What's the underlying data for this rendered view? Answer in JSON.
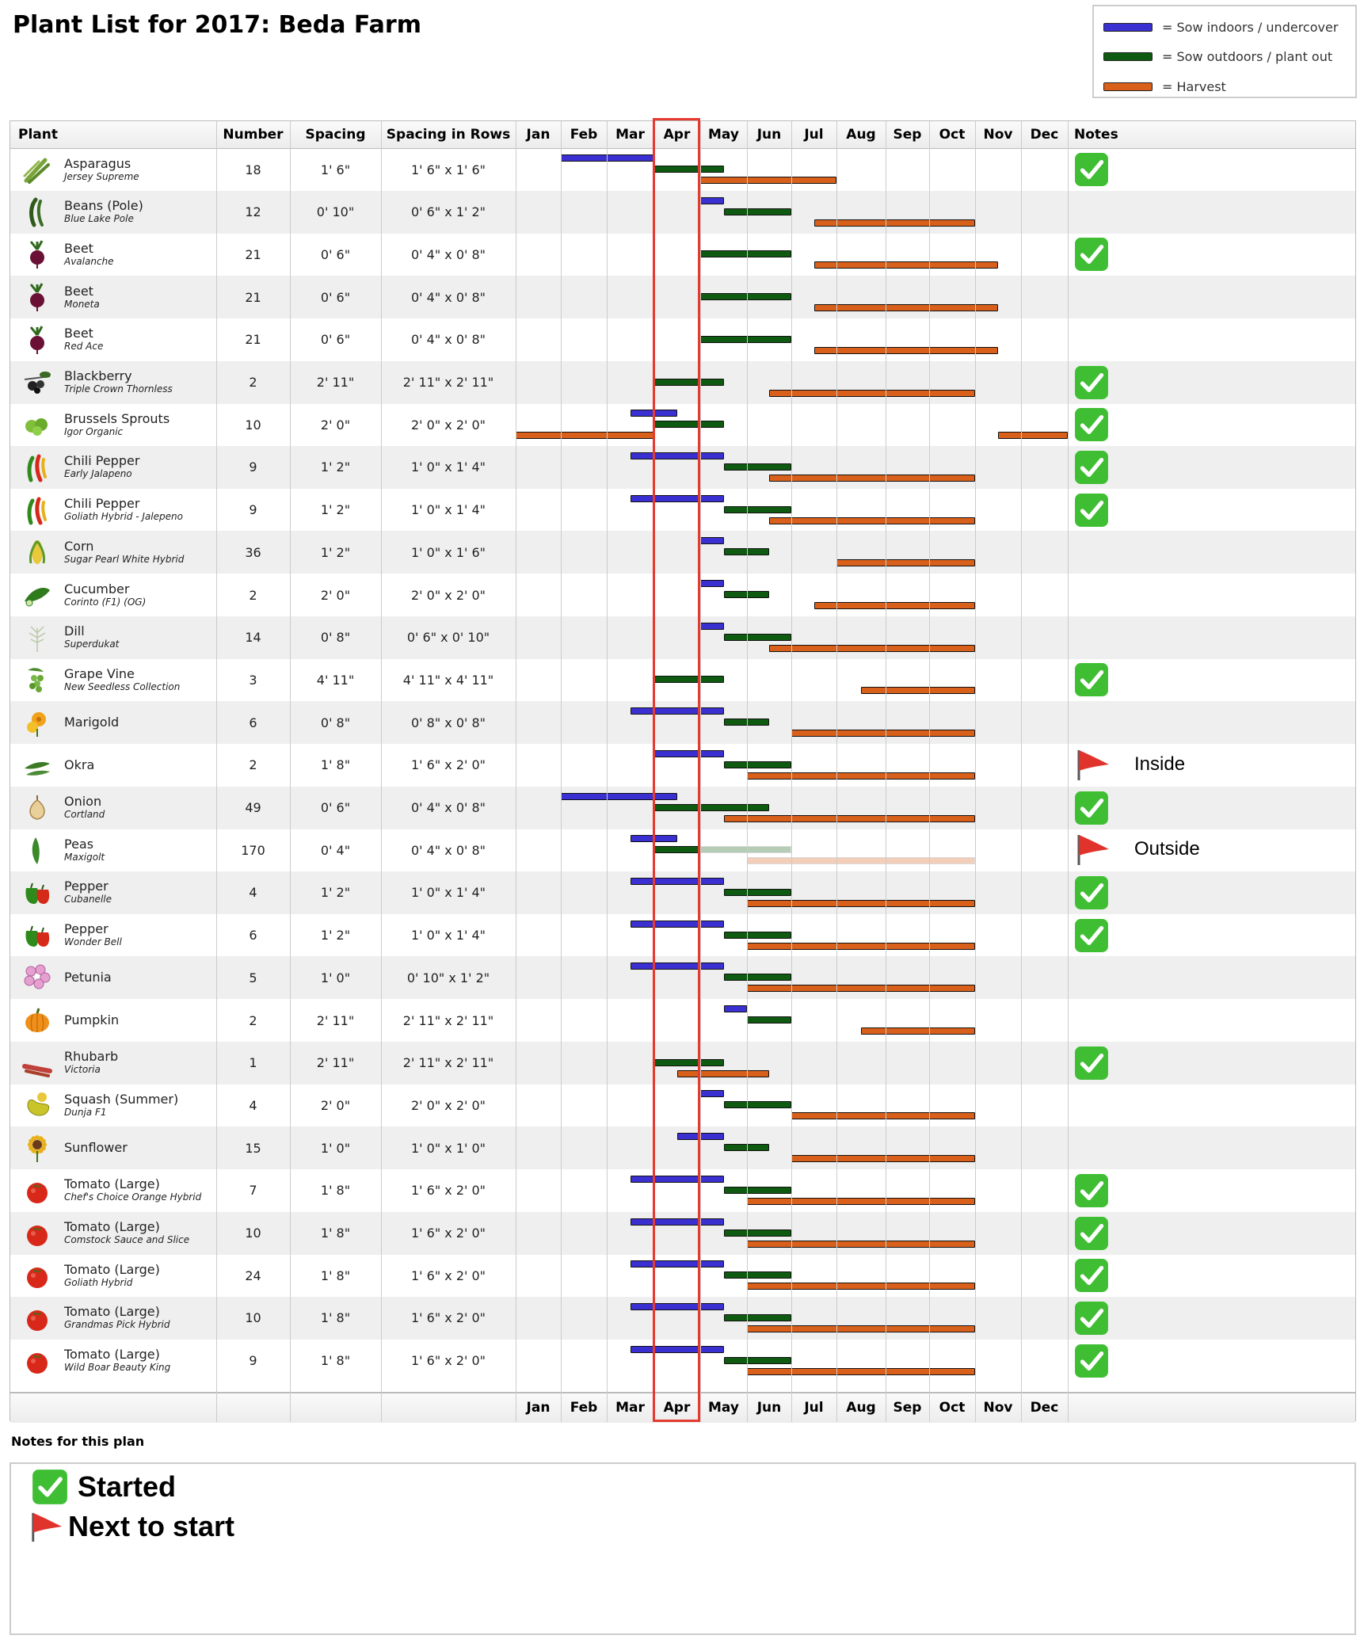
{
  "title": "Plant List for 2017: Beda Farm",
  "legend": [
    {
      "label": "= Sow indoors / undercover",
      "kind": "sow-in"
    },
    {
      "label": "= Sow outdoors / plant out",
      "kind": "sow-out"
    },
    {
      "label": "= Harvest",
      "kind": "harvest"
    }
  ],
  "colors": {
    "sow_in": "#3a2fd0",
    "sow_out": "#0e5a10",
    "harvest": "#d9601b",
    "highlight": "#e53a30",
    "check": "#3fbe33",
    "flag": "#e0332c"
  },
  "columns": {
    "plant": "Plant",
    "number": "Number",
    "spacing": "Spacing",
    "rows": "Spacing in Rows",
    "notes": "Notes"
  },
  "months": [
    "Jan",
    "Feb",
    "Mar",
    "Apr",
    "May",
    "Jun",
    "Jul",
    "Aug",
    "Sep",
    "Oct",
    "Nov",
    "Dec"
  ],
  "highlight_month": "Apr",
  "plants": [
    {
      "name": "Asparagus",
      "variety": "Jersey Supreme",
      "number": "18",
      "spacing": "1' 6\"",
      "rows": "1' 6\" x 1' 6\"",
      "icon": "asparagus-icon",
      "bars": [
        {
          "kind": "sow-in",
          "start": 1,
          "end": 3
        },
        {
          "kind": "sow-out",
          "start": 3,
          "end": 4.5
        },
        {
          "kind": "harvest",
          "start": 4,
          "end": 7
        }
      ],
      "note": "check"
    },
    {
      "name": "Beans (Pole)",
      "variety": "Blue Lake Pole",
      "number": "12",
      "spacing": "0' 10\"",
      "rows": "0' 6\" x 1' 2\"",
      "icon": "bean-icon",
      "bars": [
        {
          "kind": "sow-in",
          "start": 4,
          "end": 4.5
        },
        {
          "kind": "sow-out",
          "start": 4.5,
          "end": 6
        },
        {
          "kind": "harvest",
          "start": 6.5,
          "end": 10
        }
      ],
      "note": ""
    },
    {
      "name": "Beet",
      "variety": "Avalanche",
      "number": "21",
      "spacing": "0' 6\"",
      "rows": "0' 4\" x 0' 8\"",
      "icon": "beet-icon",
      "bars": [
        {
          "kind": "sow-out",
          "start": 4,
          "end": 6
        },
        {
          "kind": "harvest",
          "start": 6.5,
          "end": 10.5
        }
      ],
      "note": "check"
    },
    {
      "name": "Beet",
      "variety": "Moneta",
      "number": "21",
      "spacing": "0' 6\"",
      "rows": "0' 4\" x 0' 8\"",
      "icon": "beet-icon",
      "bars": [
        {
          "kind": "sow-out",
          "start": 4,
          "end": 6
        },
        {
          "kind": "harvest",
          "start": 6.5,
          "end": 10.5
        }
      ],
      "note": ""
    },
    {
      "name": "Beet",
      "variety": "Red Ace",
      "number": "21",
      "spacing": "0' 6\"",
      "rows": "0' 4\" x 0' 8\"",
      "icon": "beet-icon",
      "bars": [
        {
          "kind": "sow-out",
          "start": 4,
          "end": 6
        },
        {
          "kind": "harvest",
          "start": 6.5,
          "end": 10.5
        }
      ],
      "note": ""
    },
    {
      "name": "Blackberry",
      "variety": "Triple Crown Thornless",
      "number": "2",
      "spacing": "2' 11\"",
      "rows": "2' 11\" x 2' 11\"",
      "icon": "blackberry-icon",
      "bars": [
        {
          "kind": "sow-out",
          "start": 3,
          "end": 4.5
        },
        {
          "kind": "harvest",
          "start": 5.5,
          "end": 10
        }
      ],
      "note": "check"
    },
    {
      "name": "Brussels Sprouts",
      "variety": "Igor Organic",
      "number": "10",
      "spacing": "2' 0\"",
      "rows": "2' 0\" x 2' 0\"",
      "icon": "brussels-icon",
      "bars": [
        {
          "kind": "sow-in",
          "start": 2.5,
          "end": 3.5
        },
        {
          "kind": "sow-out",
          "start": 3,
          "end": 4.5
        },
        {
          "kind": "harvest",
          "start": 0,
          "end": 3
        },
        {
          "kind": "harvest",
          "start": 10.5,
          "end": 12
        }
      ],
      "note": "check"
    },
    {
      "name": "Chili Pepper",
      "variety": "Early Jalapeno",
      "number": "9",
      "spacing": "1' 2\"",
      "rows": "1' 0\" x 1' 4\"",
      "icon": "chili-icon",
      "bars": [
        {
          "kind": "sow-in",
          "start": 2.5,
          "end": 4.5
        },
        {
          "kind": "sow-out",
          "start": 4.5,
          "end": 6
        },
        {
          "kind": "harvest",
          "start": 5.5,
          "end": 10
        }
      ],
      "note": "check"
    },
    {
      "name": "Chili Pepper",
      "variety": "Goliath Hybrid - Jalepeno",
      "number": "9",
      "spacing": "1' 2\"",
      "rows": "1' 0\" x 1' 4\"",
      "icon": "chili-icon",
      "bars": [
        {
          "kind": "sow-in",
          "start": 2.5,
          "end": 4.5
        },
        {
          "kind": "sow-out",
          "start": 4.5,
          "end": 6
        },
        {
          "kind": "harvest",
          "start": 5.5,
          "end": 10
        }
      ],
      "note": "check"
    },
    {
      "name": "Corn",
      "variety": "Sugar Pearl White Hybrid",
      "number": "36",
      "spacing": "1' 2\"",
      "rows": "1' 0\" x 1' 6\"",
      "icon": "corn-icon",
      "bars": [
        {
          "kind": "sow-in",
          "start": 4,
          "end": 4.5
        },
        {
          "kind": "sow-out",
          "start": 4.5,
          "end": 5.5
        },
        {
          "kind": "harvest",
          "start": 7,
          "end": 10
        }
      ],
      "note": ""
    },
    {
      "name": "Cucumber",
      "variety": "Corinto (F1) (OG)",
      "number": "2",
      "spacing": "2' 0\"",
      "rows": "2' 0\" x 2' 0\"",
      "icon": "cucumber-icon",
      "bars": [
        {
          "kind": "sow-in",
          "start": 4,
          "end": 4.5
        },
        {
          "kind": "sow-out",
          "start": 4.5,
          "end": 5.5
        },
        {
          "kind": "harvest",
          "start": 6.5,
          "end": 10
        }
      ],
      "note": ""
    },
    {
      "name": "Dill",
      "variety": "Superdukat",
      "number": "14",
      "spacing": "0' 8\"",
      "rows": "0' 6\" x 0' 10\"",
      "icon": "dill-icon",
      "bars": [
        {
          "kind": "sow-in",
          "start": 4,
          "end": 4.5
        },
        {
          "kind": "sow-out",
          "start": 4.5,
          "end": 6
        },
        {
          "kind": "harvest",
          "start": 5.5,
          "end": 10
        }
      ],
      "note": ""
    },
    {
      "name": "Grape Vine",
      "variety": "New Seedless Collection",
      "number": "3",
      "spacing": "4' 11\"",
      "rows": "4' 11\" x 4' 11\"",
      "icon": "grape-icon",
      "bars": [
        {
          "kind": "sow-out",
          "start": 3,
          "end": 4.5
        },
        {
          "kind": "harvest",
          "start": 7.5,
          "end": 10
        }
      ],
      "note": "check"
    },
    {
      "name": "Marigold",
      "variety": "",
      "number": "6",
      "spacing": "0' 8\"",
      "rows": "0' 8\" x 0' 8\"",
      "icon": "marigold-icon",
      "bars": [
        {
          "kind": "sow-in",
          "start": 2.5,
          "end": 4.5
        },
        {
          "kind": "sow-out",
          "start": 4.5,
          "end": 5.5
        },
        {
          "kind": "harvest",
          "start": 6,
          "end": 10
        }
      ],
      "note": ""
    },
    {
      "name": "Okra",
      "variety": "",
      "number": "2",
      "spacing": "1' 8\"",
      "rows": "1' 6\" x 2' 0\"",
      "icon": "okra-icon",
      "bars": [
        {
          "kind": "sow-in",
          "start": 3,
          "end": 4.5
        },
        {
          "kind": "sow-out",
          "start": 4.5,
          "end": 6
        },
        {
          "kind": "harvest",
          "start": 5,
          "end": 10
        }
      ],
      "note": "flag",
      "note_text": "Inside"
    },
    {
      "name": "Onion",
      "variety": "Cortland",
      "number": "49",
      "spacing": "0' 6\"",
      "rows": "0' 4\" x 0' 8\"",
      "icon": "onion-icon",
      "bars": [
        {
          "kind": "sow-in",
          "start": 1,
          "end": 3.5
        },
        {
          "kind": "sow-out",
          "start": 3,
          "end": 5.5
        },
        {
          "kind": "harvest",
          "start": 4.5,
          "end": 10
        }
      ],
      "note": "check"
    },
    {
      "name": "Peas",
      "variety": "Maxigolt",
      "number": "170",
      "spacing": "0' 4\"",
      "rows": "0' 4\" x 0' 8\"",
      "icon": "peas-icon",
      "bars": [
        {
          "kind": "sow-in",
          "start": 2.5,
          "end": 3.5
        },
        {
          "kind": "sow-out",
          "start": 3,
          "end": 4
        },
        {
          "kind": "sow-out",
          "start": 4,
          "end": 6,
          "faded": true
        },
        {
          "kind": "harvest",
          "start": 5,
          "end": 10,
          "faded": true
        }
      ],
      "note": "flag",
      "note_text": "Outside"
    },
    {
      "name": "Pepper",
      "variety": "Cubanelle",
      "number": "4",
      "spacing": "1' 2\"",
      "rows": "1' 0\" x 1' 4\"",
      "icon": "pepper-icon",
      "bars": [
        {
          "kind": "sow-in",
          "start": 2.5,
          "end": 4.5
        },
        {
          "kind": "sow-out",
          "start": 4.5,
          "end": 6
        },
        {
          "kind": "harvest",
          "start": 5,
          "end": 10
        }
      ],
      "note": "check"
    },
    {
      "name": "Pepper",
      "variety": "Wonder Bell",
      "number": "6",
      "spacing": "1' 2\"",
      "rows": "1' 0\" x 1' 4\"",
      "icon": "pepper-icon",
      "bars": [
        {
          "kind": "sow-in",
          "start": 2.5,
          "end": 4.5
        },
        {
          "kind": "sow-out",
          "start": 4.5,
          "end": 6
        },
        {
          "kind": "harvest",
          "start": 5,
          "end": 10
        }
      ],
      "note": "check"
    },
    {
      "name": "Petunia",
      "variety": "",
      "number": "5",
      "spacing": "1' 0\"",
      "rows": "0' 10\" x 1' 2\"",
      "icon": "petunia-icon",
      "bars": [
        {
          "kind": "sow-in",
          "start": 2.5,
          "end": 4.5
        },
        {
          "kind": "sow-out",
          "start": 4.5,
          "end": 6
        },
        {
          "kind": "harvest",
          "start": 5,
          "end": 10
        }
      ],
      "note": ""
    },
    {
      "name": "Pumpkin",
      "variety": "",
      "number": "2",
      "spacing": "2' 11\"",
      "rows": "2' 11\" x 2' 11\"",
      "icon": "pumpkin-icon",
      "bars": [
        {
          "kind": "sow-in",
          "start": 4.5,
          "end": 5
        },
        {
          "kind": "sow-out",
          "start": 5,
          "end": 6
        },
        {
          "kind": "harvest",
          "start": 7.5,
          "end": 10
        }
      ],
      "note": ""
    },
    {
      "name": "Rhubarb",
      "variety": "Victoria",
      "number": "1",
      "spacing": "2' 11\"",
      "rows": "2' 11\" x 2' 11\"",
      "icon": "rhubarb-icon",
      "bars": [
        {
          "kind": "sow-out",
          "start": 3,
          "end": 4.5
        },
        {
          "kind": "harvest",
          "start": 3.5,
          "end": 5.5
        }
      ],
      "note": "check"
    },
    {
      "name": "Squash (Summer)",
      "variety": "Dunja F1",
      "number": "4",
      "spacing": "2' 0\"",
      "rows": "2' 0\" x 2' 0\"",
      "icon": "squash-icon",
      "bars": [
        {
          "kind": "sow-in",
          "start": 4,
          "end": 4.5
        },
        {
          "kind": "sow-out",
          "start": 4.5,
          "end": 6
        },
        {
          "kind": "harvest",
          "start": 6,
          "end": 10
        }
      ],
      "note": ""
    },
    {
      "name": "Sunflower",
      "variety": "",
      "number": "15",
      "spacing": "1' 0\"",
      "rows": "1' 0\" x 1' 0\"",
      "icon": "sunflower-icon",
      "bars": [
        {
          "kind": "sow-in",
          "start": 3.5,
          "end": 4.5
        },
        {
          "kind": "sow-out",
          "start": 4.5,
          "end": 5.5
        },
        {
          "kind": "harvest",
          "start": 6,
          "end": 10
        }
      ],
      "note": ""
    },
    {
      "name": "Tomato (Large)",
      "variety": "Chef's Choice Orange Hybrid",
      "number": "7",
      "spacing": "1' 8\"",
      "rows": "1' 6\" x 2' 0\"",
      "icon": "tomato-icon",
      "bars": [
        {
          "kind": "sow-in",
          "start": 2.5,
          "end": 4.5
        },
        {
          "kind": "sow-out",
          "start": 4.5,
          "end": 6
        },
        {
          "kind": "harvest",
          "start": 5,
          "end": 10
        }
      ],
      "note": "check"
    },
    {
      "name": "Tomato (Large)",
      "variety": "Comstock Sauce and Slice",
      "number": "10",
      "spacing": "1' 8\"",
      "rows": "1' 6\" x 2' 0\"",
      "icon": "tomato-icon",
      "bars": [
        {
          "kind": "sow-in",
          "start": 2.5,
          "end": 4.5
        },
        {
          "kind": "sow-out",
          "start": 4.5,
          "end": 6
        },
        {
          "kind": "harvest",
          "start": 5,
          "end": 10
        }
      ],
      "note": "check"
    },
    {
      "name": "Tomato (Large)",
      "variety": "Goliath Hybrid",
      "number": "24",
      "spacing": "1' 8\"",
      "rows": "1' 6\" x 2' 0\"",
      "icon": "tomato-icon",
      "bars": [
        {
          "kind": "sow-in",
          "start": 2.5,
          "end": 4.5
        },
        {
          "kind": "sow-out",
          "start": 4.5,
          "end": 6
        },
        {
          "kind": "harvest",
          "start": 5,
          "end": 10
        }
      ],
      "note": "check"
    },
    {
      "name": "Tomato (Large)",
      "variety": "Grandmas Pick Hybrid",
      "number": "10",
      "spacing": "1' 8\"",
      "rows": "1' 6\" x 2' 0\"",
      "icon": "tomato-icon",
      "bars": [
        {
          "kind": "sow-in",
          "start": 2.5,
          "end": 4.5
        },
        {
          "kind": "sow-out",
          "start": 4.5,
          "end": 6
        },
        {
          "kind": "harvest",
          "start": 5,
          "end": 10
        }
      ],
      "note": "check"
    },
    {
      "name": "Tomato (Large)",
      "variety": "Wild Boar Beauty King",
      "number": "9",
      "spacing": "1' 8\"",
      "rows": "1' 6\" x 2' 0\"",
      "icon": "tomato-icon",
      "bars": [
        {
          "kind": "sow-in",
          "start": 2.5,
          "end": 4.5
        },
        {
          "kind": "sow-out",
          "start": 4.5,
          "end": 6
        },
        {
          "kind": "harvest",
          "start": 5,
          "end": 10
        }
      ],
      "note": "check"
    }
  ],
  "notes_section": {
    "label": "Notes for this plan",
    "items": [
      {
        "icon": "check",
        "text": "Started"
      },
      {
        "icon": "flag",
        "text": "Next to start"
      }
    ]
  }
}
